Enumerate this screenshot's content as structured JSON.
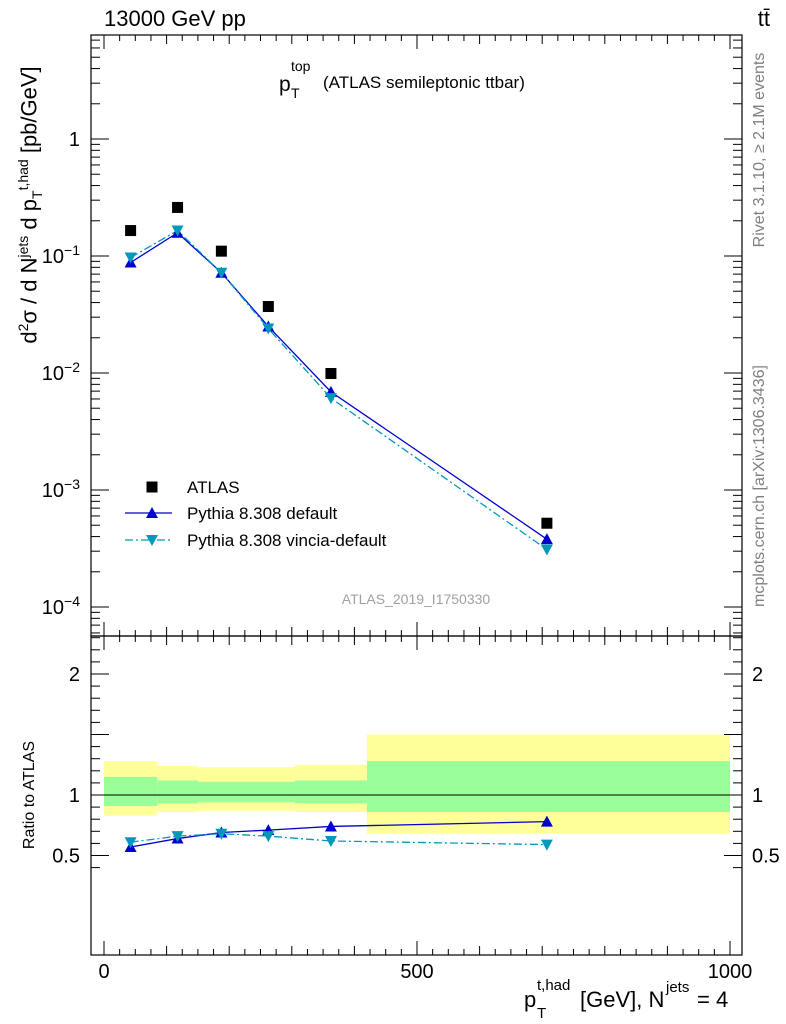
{
  "header": {
    "energy": "13000 GeV pp",
    "process": "tt̄"
  },
  "side_labels": {
    "rivet": "Rivet 3.1.10, ≥ 2.1M events",
    "mcplots": "mcplots.cern.ch [arXiv:1306.3436]"
  },
  "plot": {
    "title_var": "p",
    "title_sub": "T",
    "title_sup": "top",
    "title_text": "(ATLAS semileptonic ttbar)",
    "analysis_id": "ATLAS_2019_I1750330"
  },
  "labels": {
    "ylabel_main": "d²σ / d Njets d pTt,had [pb/GeV]",
    "ylabel_ratio": "Ratio to ATLAS",
    "xlabel": "pTt,had [GeV], Njets = 4"
  },
  "chart_data": [
    {
      "type": "scatter",
      "panel": "main",
      "yscale": "log",
      "xlim": [
        -30,
        1030
      ],
      "ylim": [
        5e-05,
        7
      ],
      "x_ticks": [
        "0",
        "500",
        "1000"
      ],
      "y_ticks": [
        "10⁻⁴",
        "10⁻³",
        "10⁻²",
        "10⁻¹",
        "1"
      ],
      "legend_position": "bottom-left",
      "series": [
        {
          "name": "ATLAS",
          "marker": "square",
          "color": "#000000",
          "x": [
            42.5,
            117.5,
            187.5,
            262.5,
            362.5,
            707.5
          ],
          "y": [
            0.165,
            0.26,
            0.11,
            0.037,
            0.0099,
            0.00052
          ]
        },
        {
          "name": "Pythia 8.308 default",
          "marker": "triangle-up",
          "color": "#0000cc",
          "line": "solid",
          "x": [
            42.5,
            117.5,
            187.5,
            262.5,
            362.5,
            707.5
          ],
          "y": [
            0.088,
            0.158,
            0.072,
            0.025,
            0.0069,
            0.00038
          ]
        },
        {
          "name": "Pythia 8.308 vincia-default",
          "marker": "triangle-down",
          "color": "#0099bb",
          "line": "dashdot",
          "x": [
            42.5,
            117.5,
            187.5,
            262.5,
            362.5,
            707.5
          ],
          "y": [
            0.097,
            0.165,
            0.072,
            0.024,
            0.0061,
            0.00031
          ]
        }
      ]
    },
    {
      "type": "line",
      "panel": "ratio",
      "xlim": [
        -30,
        1030
      ],
      "ylim": [
        0.35,
        2.35
      ],
      "x_ticks": [
        "0",
        "500",
        "1000"
      ],
      "y_ticks": [
        "0.5",
        "1",
        "2"
      ],
      "reference_line": 1,
      "bands": [
        {
          "name": "total uncertainty",
          "color": "#ffff99",
          "bins": [
            [
              0,
              85,
              0.83,
              1.28
            ],
            [
              85,
              150,
              0.86,
              1.24
            ],
            [
              150,
              305,
              0.87,
              1.23
            ],
            [
              305,
              420,
              0.86,
              1.25
            ],
            [
              420,
              1000,
              0.68,
              1.5
            ]
          ]
        },
        {
          "name": "stat uncertainty",
          "color": "#99ff99",
          "bins": [
            [
              0,
              85,
              0.91,
              1.15
            ],
            [
              85,
              150,
              0.93,
              1.12
            ],
            [
              150,
              305,
              0.94,
              1.11
            ],
            [
              305,
              420,
              0.93,
              1.12
            ],
            [
              420,
              1000,
              0.86,
              1.28
            ]
          ]
        }
      ],
      "series": [
        {
          "name": "Pythia 8.308 default",
          "marker": "triangle-up",
          "color": "#0000cc",
          "line": "solid",
          "x": [
            42.5,
            117.5,
            187.5,
            262.5,
            362.5,
            707.5
          ],
          "y": [
            0.57,
            0.64,
            0.69,
            0.71,
            0.74,
            0.78
          ]
        },
        {
          "name": "Pythia 8.308 vincia-default",
          "marker": "triangle-down",
          "color": "#0099bb",
          "line": "dashdot",
          "x": [
            42.5,
            117.5,
            187.5,
            262.5,
            362.5,
            707.5
          ],
          "y": [
            0.61,
            0.66,
            0.68,
            0.66,
            0.62,
            0.59
          ]
        }
      ]
    }
  ]
}
